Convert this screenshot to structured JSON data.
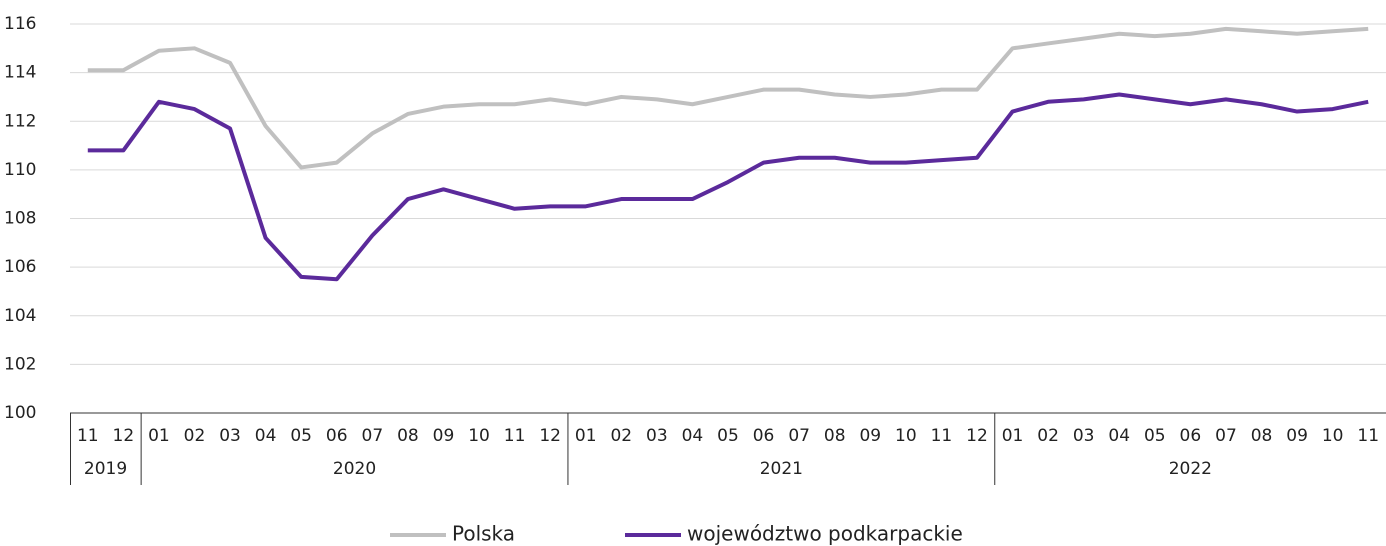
{
  "chart_data": {
    "type": "line",
    "categories": [
      "11",
      "12",
      "01",
      "02",
      "03",
      "04",
      "05",
      "06",
      "07",
      "08",
      "09",
      "10",
      "11",
      "12",
      "01",
      "02",
      "03",
      "04",
      "05",
      "06",
      "07",
      "08",
      "09",
      "10",
      "11",
      "12",
      "01",
      "02",
      "03",
      "04",
      "05",
      "06",
      "07",
      "08",
      "09",
      "10",
      "11"
    ],
    "year_groups": [
      {
        "label": "2019",
        "span": 2
      },
      {
        "label": "2020",
        "span": 12
      },
      {
        "label": "2021",
        "span": 12
      },
      {
        "label": "2022",
        "span": 11
      }
    ],
    "series": [
      {
        "name": "Polska",
        "color": "#c0c0c0",
        "values": [
          114.1,
          114.1,
          114.9,
          115.0,
          114.4,
          111.8,
          110.1,
          110.3,
          111.5,
          112.3,
          112.6,
          112.7,
          112.7,
          112.9,
          112.7,
          113.0,
          112.9,
          112.7,
          113.0,
          113.3,
          113.3,
          113.1,
          113.0,
          113.1,
          113.3,
          113.3,
          115.0,
          115.2,
          115.4,
          115.6,
          115.5,
          115.6,
          115.8,
          115.7,
          115.6,
          115.7,
          115.8
        ]
      },
      {
        "name": "województwo podkarpackie",
        "color": "#5b2a9b",
        "values": [
          110.8,
          110.8,
          112.8,
          112.5,
          111.7,
          107.2,
          105.6,
          105.5,
          107.3,
          108.8,
          109.2,
          108.8,
          108.4,
          108.5,
          108.5,
          108.8,
          108.8,
          108.8,
          109.5,
          110.3,
          110.5,
          110.5,
          110.3,
          110.3,
          110.4,
          110.5,
          112.4,
          112.8,
          112.9,
          113.1,
          112.9,
          112.7,
          112.9,
          112.7,
          112.4,
          112.5,
          112.8
        ]
      }
    ],
    "ylim": [
      100,
      116
    ],
    "yticks": [
      100,
      102,
      104,
      106,
      108,
      110,
      112,
      114,
      116
    ],
    "grid": true,
    "legend": "bottom"
  }
}
